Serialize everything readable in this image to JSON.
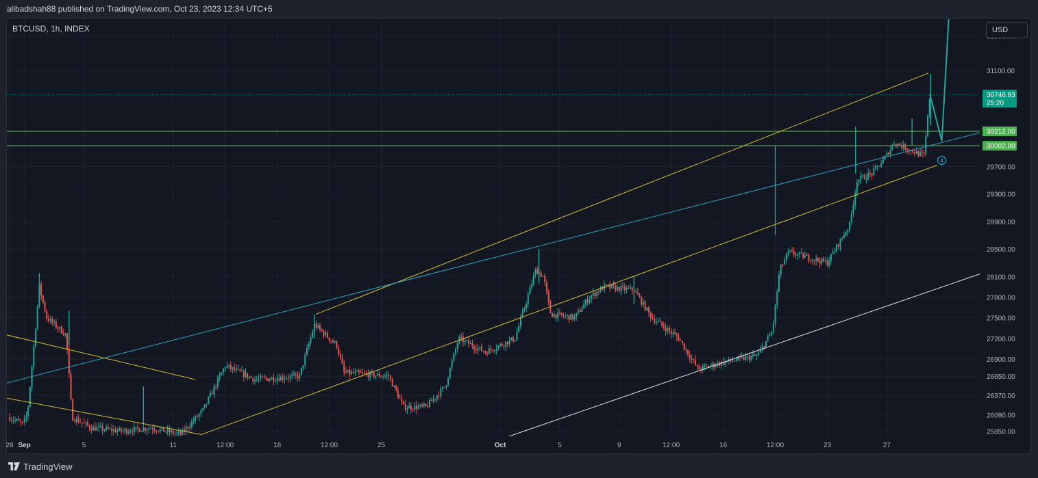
{
  "publisher": {
    "text": "alibadshah88 published on TradingView.com, Oct 23, 2023 12:34 UTC+5"
  },
  "chart_data": {
    "type": "candlestick",
    "symbol": "BTCUSD, 1h, INDEX",
    "currency_label": "USD",
    "y_ticks": [
      {
        "value": 31600,
        "label": "31600.00"
      },
      {
        "value": 31100,
        "label": "31100.00"
      },
      {
        "value": 29700,
        "label": "29700.00"
      },
      {
        "value": 29300,
        "label": "29300.00"
      },
      {
        "value": 28900,
        "label": "28900.00"
      },
      {
        "value": 28500,
        "label": "28500.00"
      },
      {
        "value": 28100,
        "label": "28100.00"
      },
      {
        "value": 27800,
        "label": "27800.00"
      },
      {
        "value": 27500,
        "label": "27500.00"
      },
      {
        "value": 27200,
        "label": "27200.00"
      },
      {
        "value": 26900,
        "label": "26900.00"
      },
      {
        "value": 26650,
        "label": "26650.00"
      },
      {
        "value": 26370,
        "label": "26370.00"
      },
      {
        "value": 26090,
        "label": "26090.00"
      },
      {
        "value": 25850,
        "label": "25850.00"
      }
    ],
    "x_ticks": [
      {
        "day": 0,
        "label": "28"
      },
      {
        "day": 1,
        "label": "Sep"
      },
      {
        "day": 5,
        "label": "5"
      },
      {
        "day": 11,
        "label": "11"
      },
      {
        "day": 14.5,
        "label": "12:00"
      },
      {
        "day": 18,
        "label": "18"
      },
      {
        "day": 21.5,
        "label": "12:00"
      },
      {
        "day": 25,
        "label": "25"
      },
      {
        "day": 33,
        "label": "Oct"
      },
      {
        "day": 37,
        "label": "5"
      },
      {
        "day": 41,
        "label": "9"
      },
      {
        "day": 44.5,
        "label": "12:00"
      },
      {
        "day": 48,
        "label": "16"
      },
      {
        "day": 51.5,
        "label": "12:00"
      },
      {
        "day": 55,
        "label": "23"
      },
      {
        "day": 59,
        "label": "27"
      }
    ],
    "price_labels": [
      {
        "value": 30746.83,
        "label": "30746.83",
        "sub": "25:20",
        "color": "#089981"
      },
      {
        "value": 30212,
        "label": "30212.00",
        "color": "#4caf50"
      },
      {
        "value": 30002,
        "label": "30002.00",
        "color": "#4caf50"
      }
    ],
    "horizontal_levels": [
      30212,
      30002
    ],
    "current_price": 30746.83,
    "waypoints": [
      {
        "day": 0,
        "price": 26050
      },
      {
        "day": 0.9,
        "price": 25950
      },
      {
        "day": 1.2,
        "price": 26100
      },
      {
        "day": 2,
        "price": 27950
      },
      {
        "day": 2.5,
        "price": 27500
      },
      {
        "day": 3.8,
        "price": 27250
      },
      {
        "day": 4.2,
        "price": 26050
      },
      {
        "day": 5.5,
        "price": 25900
      },
      {
        "day": 7.5,
        "price": 25850
      },
      {
        "day": 9.5,
        "price": 25900
      },
      {
        "day": 11.5,
        "price": 25800
      },
      {
        "day": 13,
        "price": 26150
      },
      {
        "day": 14.5,
        "price": 26800
      },
      {
        "day": 16.5,
        "price": 26600
      },
      {
        "day": 19.5,
        "price": 26650
      },
      {
        "day": 20.5,
        "price": 27400
      },
      {
        "day": 22,
        "price": 27100
      },
      {
        "day": 22.5,
        "price": 26700
      },
      {
        "day": 25.5,
        "price": 26650
      },
      {
        "day": 26.5,
        "price": 26200
      },
      {
        "day": 28,
        "price": 26200
      },
      {
        "day": 29.3,
        "price": 26500
      },
      {
        "day": 30.2,
        "price": 27200
      },
      {
        "day": 32,
        "price": 27000
      },
      {
        "day": 34,
        "price": 27200
      },
      {
        "day": 35.4,
        "price": 28200
      },
      {
        "day": 35.9,
        "price": 28100
      },
      {
        "day": 36.4,
        "price": 27550
      },
      {
        "day": 38,
        "price": 27500
      },
      {
        "day": 39,
        "price": 27800
      },
      {
        "day": 40,
        "price": 27950
      },
      {
        "day": 42,
        "price": 27900
      },
      {
        "day": 43.2,
        "price": 27500
      },
      {
        "day": 45,
        "price": 27200
      },
      {
        "day": 46.3,
        "price": 26750
      },
      {
        "day": 48,
        "price": 26850
      },
      {
        "day": 50.3,
        "price": 26950
      },
      {
        "day": 51.3,
        "price": 27300
      },
      {
        "day": 51.8,
        "price": 28200
      },
      {
        "day": 52.4,
        "price": 28450
      },
      {
        "day": 55,
        "price": 28300
      },
      {
        "day": 56.5,
        "price": 28850
      },
      {
        "day": 57,
        "price": 29500
      },
      {
        "day": 58,
        "price": 29600
      },
      {
        "day": 58.8,
        "price": 29800
      },
      {
        "day": 59.5,
        "price": 30050
      },
      {
        "day": 60.5,
        "price": 29950
      },
      {
        "day": 61.5,
        "price": 29850
      },
      {
        "day": 61.9,
        "price": 30750
      }
    ],
    "spikes": [
      {
        "day": 2.0,
        "high": 28150,
        "low": 27700
      },
      {
        "day": 4.0,
        "high": 27600,
        "low": 27100
      },
      {
        "day": 9.0,
        "high": 26500,
        "low": 25950
      },
      {
        "day": 20.5,
        "high": 27550,
        "low": 27200
      },
      {
        "day": 35.6,
        "high": 28500,
        "low": 28000
      },
      {
        "day": 42.0,
        "high": 28100,
        "low": 27700
      },
      {
        "day": 51.5,
        "high": 30000,
        "low": 28700
      },
      {
        "day": 56.9,
        "high": 30280,
        "low": 29600
      },
      {
        "day": 60.7,
        "high": 30400,
        "low": 30000
      },
      {
        "day": 61.95,
        "high": 31050,
        "low": 30300
      }
    ],
    "drawings": [
      {
        "name": "yellow-line-1",
        "color": "#d4c033",
        "p1": {
          "day": -0.2,
          "price": 27250
        },
        "p2": {
          "day": 12.5,
          "price": 26600
        }
      },
      {
        "name": "yellow-line-2",
        "color": "#d4c033",
        "p1": {
          "day": -0.2,
          "price": 26330
        },
        "p2": {
          "day": 12.9,
          "price": 25800
        }
      },
      {
        "name": "yellow-line-3",
        "color": "#d4c033",
        "p1": {
          "day": 12.9,
          "price": 25800
        },
        "p2": {
          "day": 62.4,
          "price": 29720
        }
      },
      {
        "name": "yellow-line-4",
        "color": "#d4c033",
        "p1": {
          "day": 20.6,
          "price": 27550
        },
        "p2": {
          "day": 61.8,
          "price": 31060
        }
      },
      {
        "name": "blue-trendline",
        "color": "#2ea6c9",
        "p1": {
          "day": -0.2,
          "price": 26550
        },
        "p2": {
          "day": 70.8,
          "price": 30500
        }
      },
      {
        "name": "white-channel-line",
        "color": "#e3e3e3",
        "p1": {
          "day": 33,
          "price": 25730
        },
        "p2": {
          "day": 70.8,
          "price": 28550
        }
      },
      {
        "name": "projection-path",
        "color": "#26a69a",
        "points": [
          {
            "day": 61.9,
            "price": 30750
          },
          {
            "day": 62.7,
            "price": 30070
          },
          {
            "day": 63.2,
            "price": 32000
          }
        ]
      }
    ],
    "wave_label": {
      "text": "4",
      "day": 62.7,
      "price": 29790,
      "color": "#2ea6c9"
    },
    "colors": {
      "background": "#131722",
      "grid": "#1f2430",
      "up": "#26a69a",
      "down": "#ef5350",
      "axis_text": "#b2b5be"
    }
  },
  "footer": {
    "brand": "TradingView"
  }
}
